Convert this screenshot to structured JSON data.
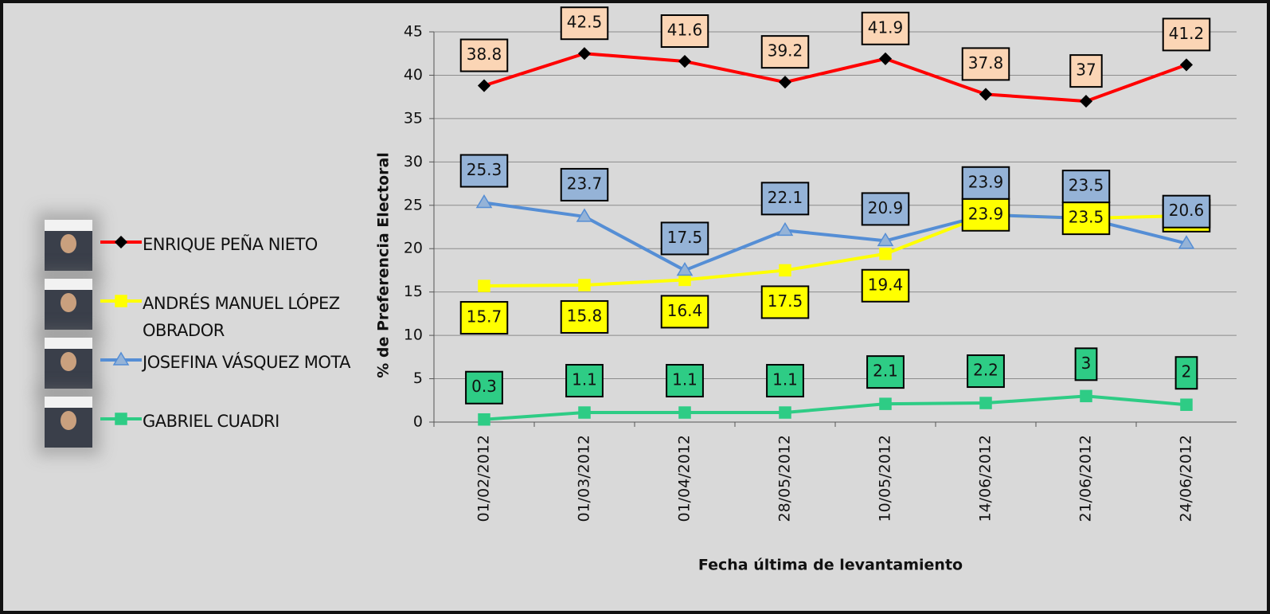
{
  "chart_data": {
    "type": "line",
    "x_label": "Fecha última de levantamiento",
    "y_label": "% de Preferencia Electoral",
    "categories": [
      "01/02/2012",
      "01/03/2012",
      "01/04/2012",
      "28/05/2012",
      "10/05/2012",
      "14/06/2012",
      "21/06/2012",
      "24/06/2012"
    ],
    "series": [
      {
        "name": "ENRIQUE PEÑA NIETO",
        "color": "#ff0000",
        "marker": "diamond",
        "label_color": "#fbd5b5",
        "values": [
          38.8,
          42.5,
          41.6,
          39.2,
          41.9,
          37.8,
          37,
          41.2
        ]
      },
      {
        "name": "ANDRÉS MANUEL LÓPEZ OBRADOR",
        "color": "#ffff00",
        "marker": "square",
        "label_color": "#ffff00",
        "values": [
          15.7,
          15.8,
          16.4,
          17.5,
          19.4,
          23.9,
          23.5,
          23.8
        ]
      },
      {
        "name": "JOSEFINA VÁSQUEZ MOTA",
        "color": "#558ed5",
        "marker": "triangle",
        "label_color": "#95b3d7",
        "values": [
          25.3,
          23.7,
          17.5,
          22.1,
          20.9,
          23.9,
          23.5,
          20.6
        ]
      },
      {
        "name": "GABRIEL CUADRI",
        "color": "#2ecc85",
        "marker": "square",
        "label_color": "#2ecc85",
        "values": [
          0.3,
          1.1,
          1.1,
          1.1,
          2.1,
          2.2,
          3,
          2
        ]
      }
    ],
    "ylim": [
      0,
      45
    ],
    "yticks": [
      0,
      5,
      10,
      15,
      20,
      25,
      30,
      35,
      40,
      45
    ],
    "grid": true
  }
}
